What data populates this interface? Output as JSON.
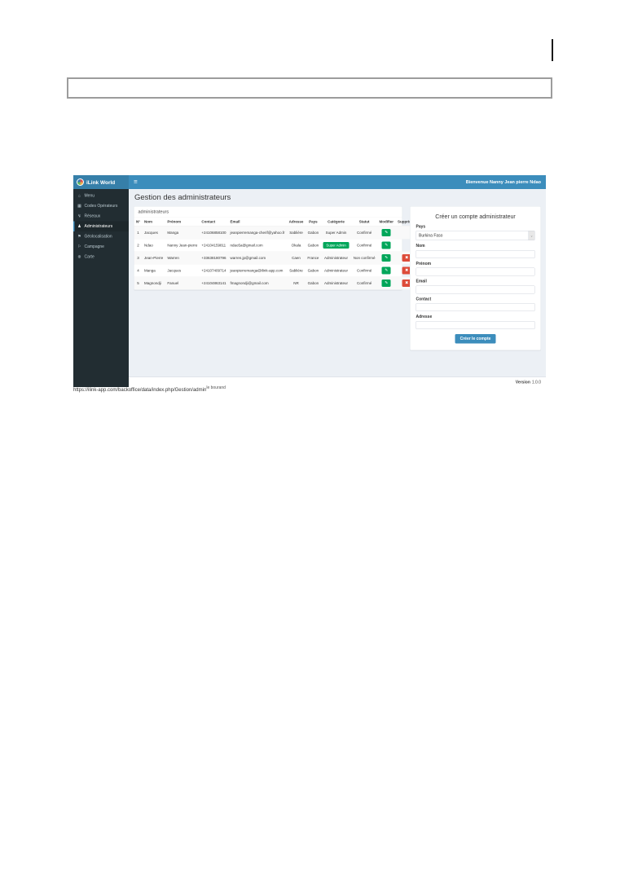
{
  "colors": {
    "navbar": "#3c8dbc",
    "navbar_logo": "#367fa9",
    "sidebar": "#222d32",
    "sidebar_active": "#1e282c",
    "content_bg": "#ecf0f5",
    "success_green": "#00a65a",
    "danger_red": "#dd4b39",
    "primary_blue": "#3c8dbc"
  },
  "icons": {
    "hamburger": "≡",
    "home": "⌂",
    "grid": "▦",
    "signal": "↯",
    "user": "♟",
    "flag": "⚑",
    "flag_outline": "⚐",
    "target": "⊕",
    "pencil": "✎",
    "trash": "✖",
    "caret_down": "⌄"
  },
  "page": {
    "status_url": "https://ilink-app.com/backoffice/data/index.php/Gestion/admin",
    "status_note": "le bourand",
    "version_bold": "Version",
    "version_number": "1.0.0"
  },
  "app": {
    "navbar": {
      "brand": "iLink World",
      "welcome": "Bienvenue Nanny Jean pierre Ndao"
    },
    "sidebar": {
      "items": [
        {
          "label": "Menu"
        },
        {
          "label": "Codes Opérateurs"
        },
        {
          "label": "Réseaux"
        },
        {
          "label": "Administrateurs"
        },
        {
          "label": "Géolocalisation"
        },
        {
          "label": "Campagne"
        },
        {
          "label": "Carte"
        }
      ]
    },
    "content": {
      "title": "Gestion des administrateurs",
      "panel_title": "administrateurs",
      "table": {
        "headers": [
          "N°",
          "Nom",
          "Prénom",
          "Contact",
          "Email",
          "Adresse",
          "Pays",
          "Catégorie",
          "Statut",
          "Modifier",
          "Supprimer"
        ],
        "rows": [
          {
            "num": "1",
            "nom": "Jacques",
            "prenom": "Manga",
            "contact": "+24106858100",
            "email": "jeanpierremanga-cherif@yahoo.fr",
            "adresse": "Sablière",
            "pays": "Gabon",
            "categorie": "Super Admin",
            "statut": "Confirmé"
          },
          {
            "num": "2",
            "nom": "Ndao",
            "prenom": "Nanny Jean-pierre",
            "contact": "+24104159811",
            "email": "ndao5a@gmail.com",
            "adresse": "Okala",
            "pays": "Gabon",
            "categorie": "Super Admin",
            "statut": "Confirmé"
          },
          {
            "num": "3",
            "nom": "Jean-Pierre",
            "prenom": "Warren",
            "contact": "+33638180796",
            "email": "warren.jp@gmail.com",
            "adresse": "Caen",
            "pays": "France",
            "categorie": "Administrateur",
            "statut": "Non confirmé"
          },
          {
            "num": "4",
            "nom": "Manga",
            "prenom": "Jacques",
            "contact": "+24107409714",
            "email": "jeanpierremanga@ilink-app.com",
            "adresse": "Sablière",
            "pays": "Gabon",
            "categorie": "Administrateur",
            "statut": "Confirmé"
          },
          {
            "num": "5",
            "nom": "Magnondji",
            "prenom": "Fanuel",
            "contact": "+24104863141",
            "email": "fmagnondji@gmail.com",
            "adresse": "NR",
            "pays": "Gabon",
            "categorie": "Administrateur",
            "statut": "Confirmé"
          }
        ]
      },
      "form": {
        "title": "Créer un compte administrateur",
        "labels": {
          "pays": "Pays",
          "nom": "Nom",
          "prenom": "Prénom",
          "email": "Email",
          "contact": "Contact",
          "adresse": "Adresse"
        },
        "pays_value": "Burkina Faso",
        "submit_label": "Créer le compte"
      }
    },
    "footer": {
      "version_bold": "Version",
      "version_number": "1.0.0"
    }
  }
}
